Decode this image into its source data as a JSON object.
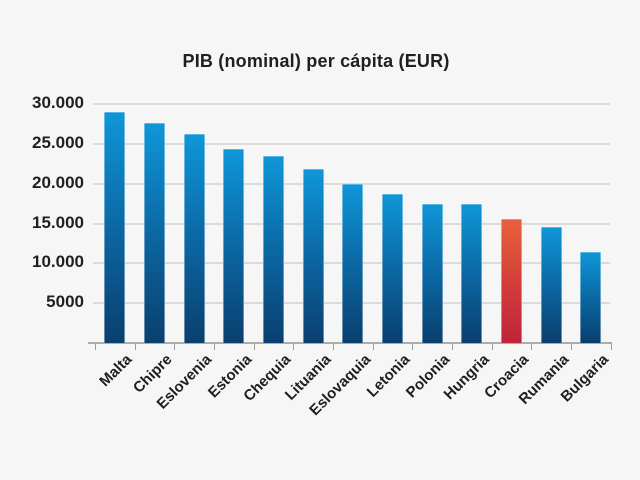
{
  "chart_data": {
    "type": "bar",
    "title": "PIB (nominal) per cápita (EUR)",
    "xlabel": "",
    "ylabel": "",
    "categories": [
      "Malta",
      "Chipre",
      "Eslovenia",
      "Estonia",
      "Chequia",
      "Lituania",
      "Eslovaquia",
      "Letonia",
      "Polonia",
      "Hungria",
      "Croacia",
      "Rumania",
      "Bulgaria"
    ],
    "values": [
      29000,
      27600,
      26200,
      24300,
      23500,
      21800,
      19900,
      18700,
      17400,
      17400,
      15600,
      14600,
      11400
    ],
    "highlighted_category": "Croacia",
    "ylim": [
      0,
      30000
    ],
    "ytick_interval": 5000,
    "ytick_labels": [
      "5000",
      "10.000",
      "15.000",
      "20.000",
      "25.000",
      "30.000"
    ],
    "grid": true,
    "legend": null,
    "colors": {
      "background": "#f6f6f6",
      "text": "#1f1f1f",
      "gridline": "#dbdbdb",
      "axis_line": "#acacac",
      "tick": "#9c9c9c",
      "bar_gradient_top": "#0f97d8",
      "bar_gradient_mid": "#0b68a4",
      "bar_gradient_bottom": "#0a3f6e",
      "highlight_gradient_top": "#e8613a",
      "highlight_gradient_mid": "#d33f3a",
      "highlight_gradient_bottom": "#c0233a"
    }
  }
}
